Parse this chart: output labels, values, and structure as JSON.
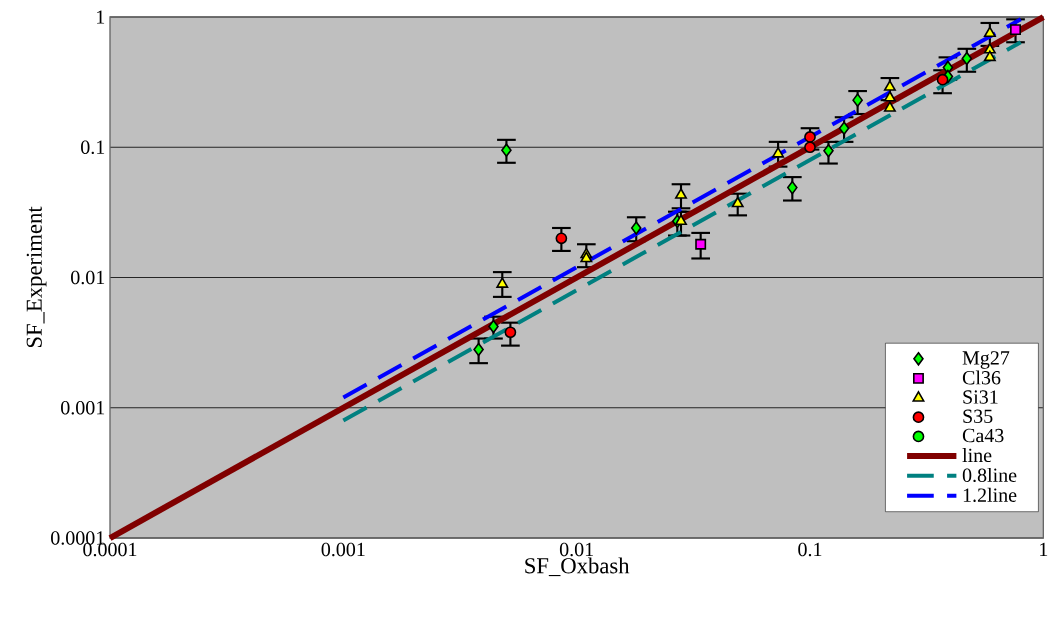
{
  "chart_data": {
    "type": "scatter",
    "xlabel": "SF_Oxbash",
    "ylabel": "SF_Experiment",
    "log": "xy",
    "grid": "y",
    "legend": "bottom right",
    "xlim": [
      0.0001,
      1
    ],
    "ylim": [
      0.0001,
      1
    ],
    "xticks": [
      0.0001,
      0.001,
      0.01,
      0.1,
      1
    ],
    "yticks": [
      0.0001,
      0.001,
      0.01,
      0.1,
      1
    ],
    "series": [
      {
        "name": "Mg27",
        "type": "scatter",
        "marker": "diamond",
        "color": "#00ff00",
        "x": [
          0.005,
          0.0044,
          0.0038,
          0.018,
          0.027,
          0.084,
          0.12,
          0.14,
          0.16,
          0.39,
          0.39,
          0.47
        ],
        "values": [
          0.095,
          0.0042,
          0.0028,
          0.024,
          0.027,
          0.049,
          0.094,
          0.14,
          0.23,
          0.41,
          0.35,
          0.48
        ],
        "errors": [
          [
            0.076,
            0.114
          ],
          [
            0.0034,
            0.005
          ],
          [
            0.0022,
            0.0034
          ],
          [
            0.019,
            0.029
          ],
          [
            0.021,
            0.032
          ],
          [
            0.039,
            0.059
          ],
          [
            0.075,
            0.11
          ],
          [
            0.11,
            0.17
          ],
          [
            0.18,
            0.27
          ],
          [
            0.33,
            0.49
          ],
          null,
          [
            0.38,
            0.57
          ]
        ]
      },
      {
        "name": "Cl36",
        "type": "scatter",
        "marker": "square",
        "color": "#ff00ff",
        "x": [
          0.034,
          0.76
        ],
        "values": [
          0.018,
          0.8
        ],
        "errors": [
          [
            0.014,
            0.022
          ],
          [
            0.64,
            0.96
          ]
        ]
      },
      {
        "name": "Si31",
        "type": "scatter",
        "marker": "triangle",
        "color": "#ffff00",
        "x": [
          0.0048,
          0.011,
          0.011,
          0.028,
          0.028,
          0.049,
          0.073,
          0.22,
          0.22,
          0.22,
          0.59,
          0.59,
          0.59
        ],
        "values": [
          0.0089,
          0.015,
          0.014,
          0.043,
          0.027,
          0.037,
          0.089,
          0.29,
          0.24,
          0.2,
          0.75,
          0.56,
          0.49
        ],
        "errors": [
          [
            0.0071,
            0.011
          ],
          [
            0.012,
            0.018
          ],
          null,
          [
            0.034,
            0.052
          ],
          [
            0.021,
            0.032
          ],
          [
            0.03,
            0.044
          ],
          [
            0.071,
            0.11
          ],
          [
            0.23,
            0.34
          ],
          null,
          null,
          [
            0.6,
            0.9
          ],
          null,
          null
        ]
      },
      {
        "name": "S35",
        "type": "scatter",
        "marker": "circle",
        "color": "#ff0000",
        "x": [
          0.0086,
          0.0052,
          0.1,
          0.1,
          0.37
        ],
        "values": [
          0.02,
          0.0038,
          0.12,
          0.1,
          0.33
        ],
        "errors": [
          [
            0.016,
            0.024
          ],
          [
            0.003,
            0.0045
          ],
          [
            0.096,
            0.14
          ],
          null,
          [
            0.26,
            0.39
          ]
        ]
      },
      {
        "name": "Ca43",
        "type": "scatter",
        "marker": "circle",
        "color": "#00ff00"
      },
      {
        "name": "line",
        "type": "line",
        "line_style": "solid",
        "color": "#800000",
        "x": [
          0.0001,
          1
        ],
        "values": [
          0.0001,
          1
        ]
      },
      {
        "name": "0.8line",
        "type": "line",
        "line_style": "dashed",
        "color": "#008080",
        "x": [
          0.001,
          0.8
        ],
        "values": [
          0.0008,
          0.64
        ]
      },
      {
        "name": "1.2line",
        "type": "line",
        "line_style": "dashed",
        "color": "#0000ff",
        "x": [
          0.001,
          0.8
        ],
        "values": [
          0.0012,
          0.96
        ]
      }
    ]
  }
}
